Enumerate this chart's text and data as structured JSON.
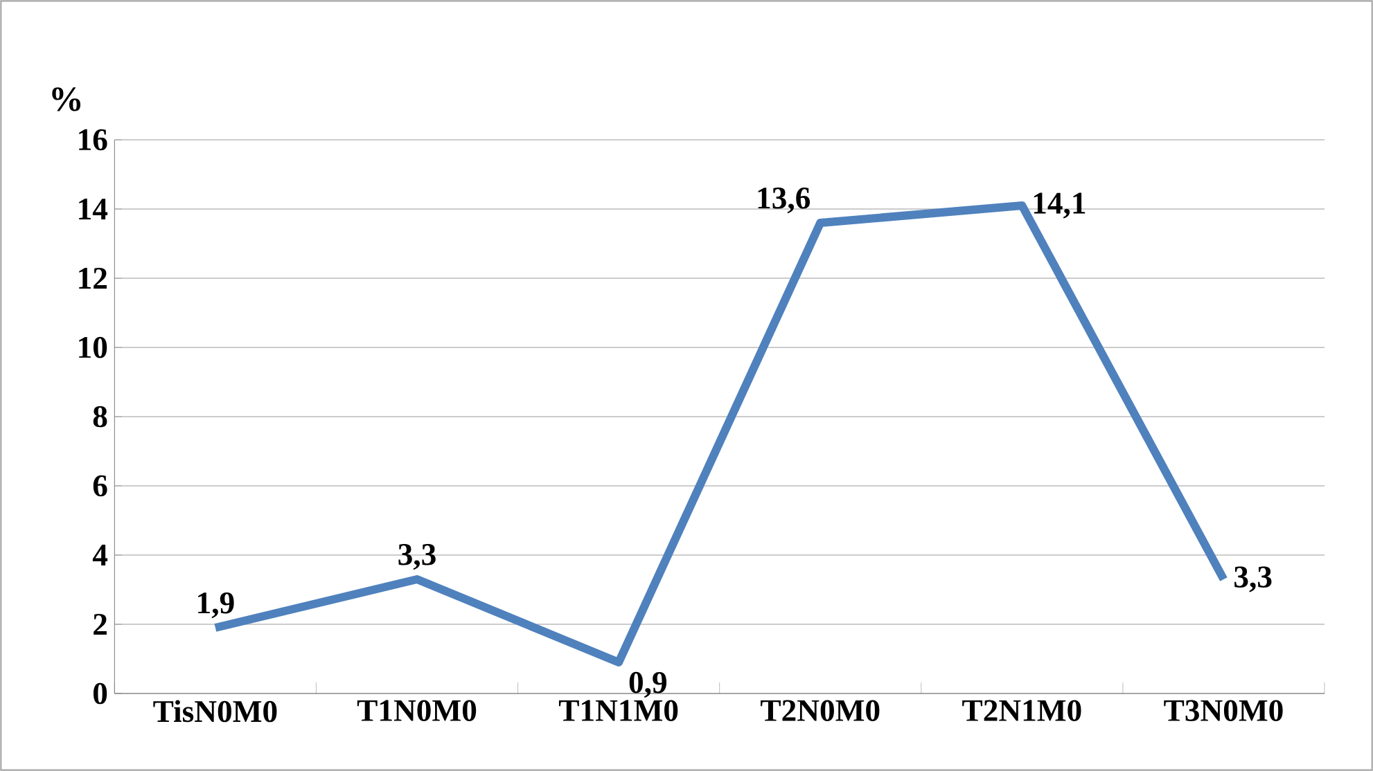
{
  "chart_data": {
    "type": "line",
    "ylabel": "%",
    "categories": [
      "TisN0M0",
      "T1N0M0",
      "T1N1M0",
      "T2N0M0",
      "T2N1M0",
      "T3N0M0"
    ],
    "series": [
      {
        "color": "#4f81bd",
        "values": [
          1.9,
          3.3,
          0.9,
          13.6,
          14.1,
          3.3
        ],
        "value_labels": [
          "1,9",
          "3,3",
          "0,9",
          "13,6",
          "14,1",
          "3,3"
        ]
      }
    ],
    "ylim": [
      0,
      16
    ],
    "yticks": [
      0,
      2,
      4,
      6,
      8,
      10,
      12,
      14,
      16
    ],
    "grid": "y",
    "marker": "none",
    "line_style": "solid"
  }
}
